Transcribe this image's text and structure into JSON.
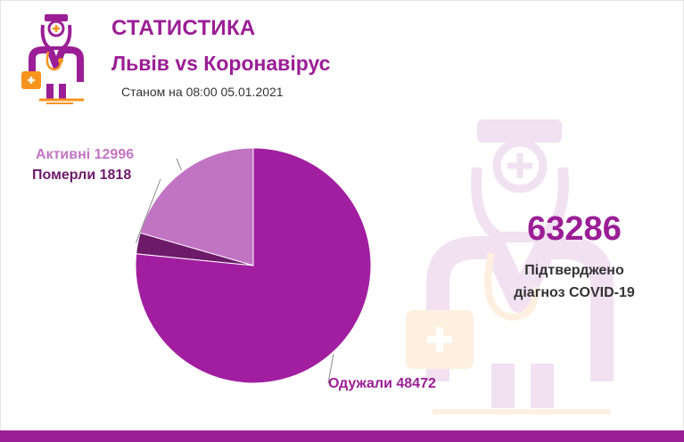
{
  "header": {
    "title": "СТАТИСТИКА",
    "subtitle": "Львів vs Коронавірус",
    "as_of": "Станом на 08:00 05.01.2021"
  },
  "summary": {
    "total": "63286",
    "label_line1": "Підтверджено",
    "label_line2": "діагноз COVID-19"
  },
  "chart_data": {
    "type": "pie",
    "title": "",
    "slices": [
      {
        "label": "Активні 12996",
        "name": "Активні",
        "value": 12996,
        "color": "#c274c4",
        "label_color": "#c274c4"
      },
      {
        "label": "Померли 1818",
        "name": "Померли",
        "value": 1818,
        "color": "#6e1a6a",
        "label_color": "#6e1a6a"
      },
      {
        "label": "Одужали 48472",
        "name": "Одужали",
        "value": 48472,
        "color": "#a11ea0",
        "label_color": "#9b1e96"
      }
    ],
    "start": "12 o'clock",
    "direction": "counter-clockwise",
    "legend": "none"
  },
  "colors": {
    "brand": "#9b1e96",
    "accent_orange": "#f7941d",
    "text": "#333333"
  },
  "icons": {
    "logo": "doctor-mascot-icon",
    "watermark": "doctor-mascot-watermark-icon"
  }
}
